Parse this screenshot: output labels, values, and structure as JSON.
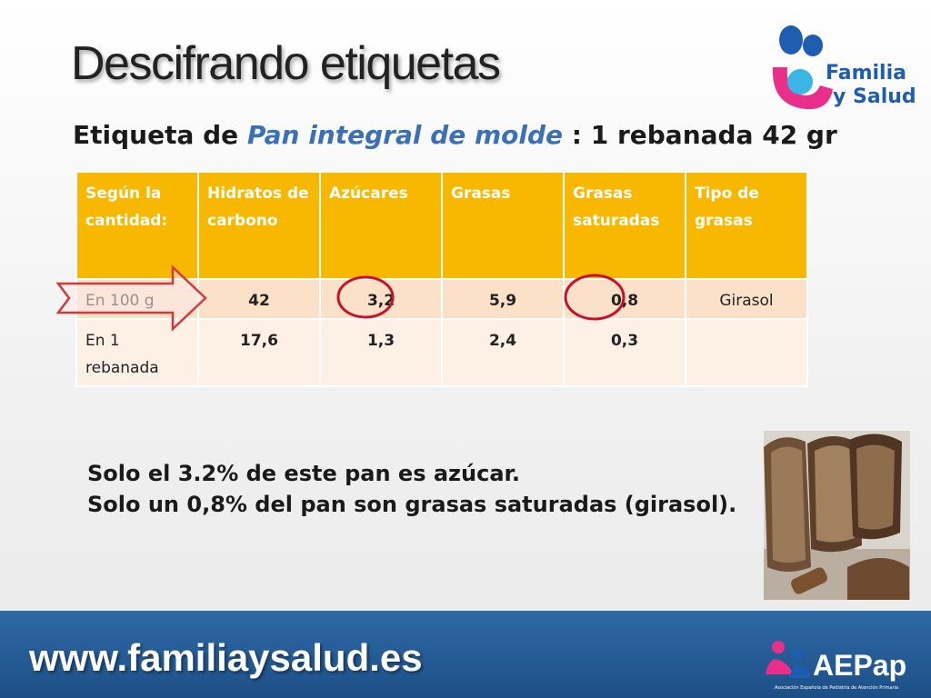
{
  "slide": {
    "title": "Descifrando etiquetas",
    "subtitle_pre": "Etiqueta de ",
    "subtitle_em": "Pan integral de molde",
    "subtitle_post": " : 1 rebanada 42 gr"
  },
  "table": {
    "headers": [
      "Según la cantidad:",
      "Hidratos de carbono",
      "Azúcares",
      "Grasas",
      "Grasas saturadas",
      "Tipo de grasas"
    ],
    "rows": [
      [
        "En 100 g",
        "42",
        "3,2",
        "5,9",
        "0,8",
        "Girasol"
      ],
      [
        "En 1 rebanada",
        "17,6",
        "1,3",
        "2,4",
        "0,3",
        ""
      ]
    ]
  },
  "notes": {
    "line1": "Solo el 3.2% de este pan es azúcar.",
    "line2": "Solo un 0,8% del pan son grasas saturadas (girasol)."
  },
  "logo": {
    "line1": "Familia",
    "line2": "y Salud"
  },
  "footer": {
    "url": "www.familiaysalud.es",
    "aepap_name": "AEPap",
    "aepap_sub": "Asociación Española de Pediatría de Atención Primaria"
  },
  "colors": {
    "header": "#f8b800",
    "accent_blue": "#3b6fb6",
    "circle_red": "#c8102e",
    "footer": "#255d98"
  }
}
